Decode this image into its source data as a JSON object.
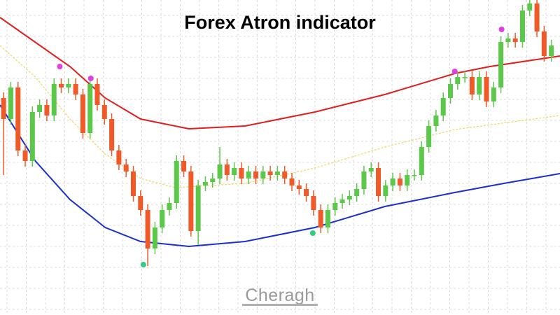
{
  "chart_data": {
    "type": "candlestick",
    "title": "Forex Atron indicator",
    "watermark": "Cheragh",
    "xlim": [
      -0.5,
      77.2
    ],
    "ylim": [
      0,
      450
    ],
    "grid": true,
    "up_color": "#5cc84a",
    "down_color": "#f05a28",
    "open": [
      310,
      280,
      325,
      235,
      220,
      290,
      300,
      285,
      330,
      325,
      330,
      315,
      260,
      330,
      300,
      280,
      235,
      215,
      205,
      170,
      150,
      95,
      125,
      150,
      160,
      220,
      205,
      120,
      185,
      190,
      195,
      215,
      200,
      210,
      195,
      205,
      195,
      205,
      200,
      205,
      195,
      185,
      180,
      170,
      150,
      125,
      150,
      160,
      165,
      170,
      180,
      205,
      210,
      170,
      185,
      195,
      185,
      200,
      200,
      240,
      270,
      285,
      310,
      330,
      340,
      340,
      315,
      340,
      305,
      325,
      390,
      395,
      390,
      435,
      445,
      405,
      370
    ],
    "high": [
      318,
      333,
      333,
      243,
      298,
      308,
      308,
      338,
      338,
      338,
      338,
      323,
      338,
      338,
      308,
      288,
      243,
      223,
      213,
      178,
      158,
      133,
      158,
      168,
      228,
      228,
      213,
      193,
      198,
      203,
      240,
      223,
      218,
      218,
      213,
      213,
      213,
      213,
      213,
      213,
      203,
      193,
      188,
      178,
      158,
      158,
      168,
      173,
      178,
      188,
      213,
      218,
      218,
      193,
      203,
      203,
      208,
      208,
      248,
      278,
      293,
      318,
      338,
      348,
      348,
      348,
      348,
      348,
      333,
      398,
      403,
      403,
      443,
      450,
      450,
      413,
      393
    ],
    "low": [
      200,
      272,
      227,
      212,
      212,
      282,
      277,
      277,
      317,
      317,
      307,
      252,
      252,
      292,
      272,
      227,
      207,
      197,
      162,
      142,
      70,
      87,
      117,
      142,
      152,
      197,
      112,
      100,
      177,
      182,
      187,
      192,
      192,
      187,
      187,
      187,
      187,
      192,
      192,
      187,
      177,
      172,
      162,
      142,
      117,
      117,
      142,
      152,
      157,
      162,
      172,
      197,
      162,
      162,
      177,
      177,
      177,
      192,
      192,
      232,
      262,
      277,
      302,
      322,
      332,
      307,
      307,
      297,
      297,
      317,
      382,
      382,
      382,
      427,
      397,
      362,
      362
    ],
    "close": [
      280,
      325,
      235,
      220,
      290,
      300,
      285,
      330,
      325,
      330,
      315,
      260,
      330,
      300,
      280,
      235,
      215,
      205,
      170,
      150,
      95,
      125,
      150,
      160,
      220,
      205,
      120,
      185,
      190,
      195,
      215,
      200,
      210,
      195,
      205,
      195,
      205,
      200,
      205,
      195,
      185,
      180,
      170,
      150,
      125,
      150,
      160,
      165,
      170,
      180,
      205,
      210,
      170,
      185,
      195,
      185,
      200,
      200,
      240,
      270,
      285,
      310,
      330,
      340,
      340,
      315,
      340,
      305,
      325,
      390,
      395,
      390,
      435,
      445,
      405,
      370,
      385
    ],
    "lines": [
      {
        "color": "#f2d560",
        "dashed": true,
        "width": 1.2,
        "x": [
          -0.5,
          4.4,
          9.2,
          14.1,
          19,
          23.8,
          33.5,
          43.2,
          52.9,
          62.6,
          77.2
        ],
        "values": [
          385,
          340,
          280,
          230,
          195,
          182,
          188,
          210,
          240,
          265,
          285
        ]
      },
      {
        "color": "#e01e1e",
        "dashed": false,
        "width": 2,
        "x": [
          -0.5,
          9.2,
          14.1,
          19,
          25.7,
          33.5,
          43.2,
          52.9,
          62.6,
          67.5,
          77.2
        ],
        "values": [
          425,
          355,
          310,
          280,
          266,
          270,
          290,
          315,
          345,
          355,
          370
        ]
      },
      {
        "color": "#1a2fd0",
        "dashed": false,
        "width": 2,
        "x": [
          -0.5,
          4.4,
          9.2,
          14.1,
          19,
          25.7,
          33.5,
          43.2,
          52.9,
          62.6,
          69.4,
          77.2
        ],
        "values": [
          300,
          220,
          165,
          125,
          105,
          98,
          105,
          125,
          155,
          175,
          188,
          202
        ]
      }
    ],
    "signals": [
      {
        "color": "#e040e0",
        "x": [
          7.8,
          12.1,
          62.6,
          69.1
        ],
        "values": [
          355,
          338,
          348,
          408
        ]
      },
      {
        "color": "#30d080",
        "x": [
          19.4,
          42.9
        ],
        "values": [
          72,
          117
        ]
      }
    ]
  }
}
